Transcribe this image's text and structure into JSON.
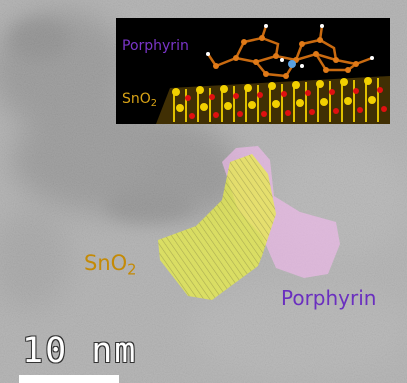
{
  "inset": {
    "porphyrin_label": "Porphyrin",
    "sno2_label": "SnO",
    "sno2_sub": "2"
  },
  "annotations": {
    "sno2_label": "SnO",
    "sno2_sub": "2",
    "porphyrin_label": "Porphyrin"
  },
  "scale_bar": {
    "label": "10 nm"
  },
  "colors": {
    "sno2_region": "#e9ee45",
    "porphyrin_region": "#f3b9ef",
    "porphyrin_text": "#6a2fbf",
    "sno2_text": "#c48a06"
  }
}
